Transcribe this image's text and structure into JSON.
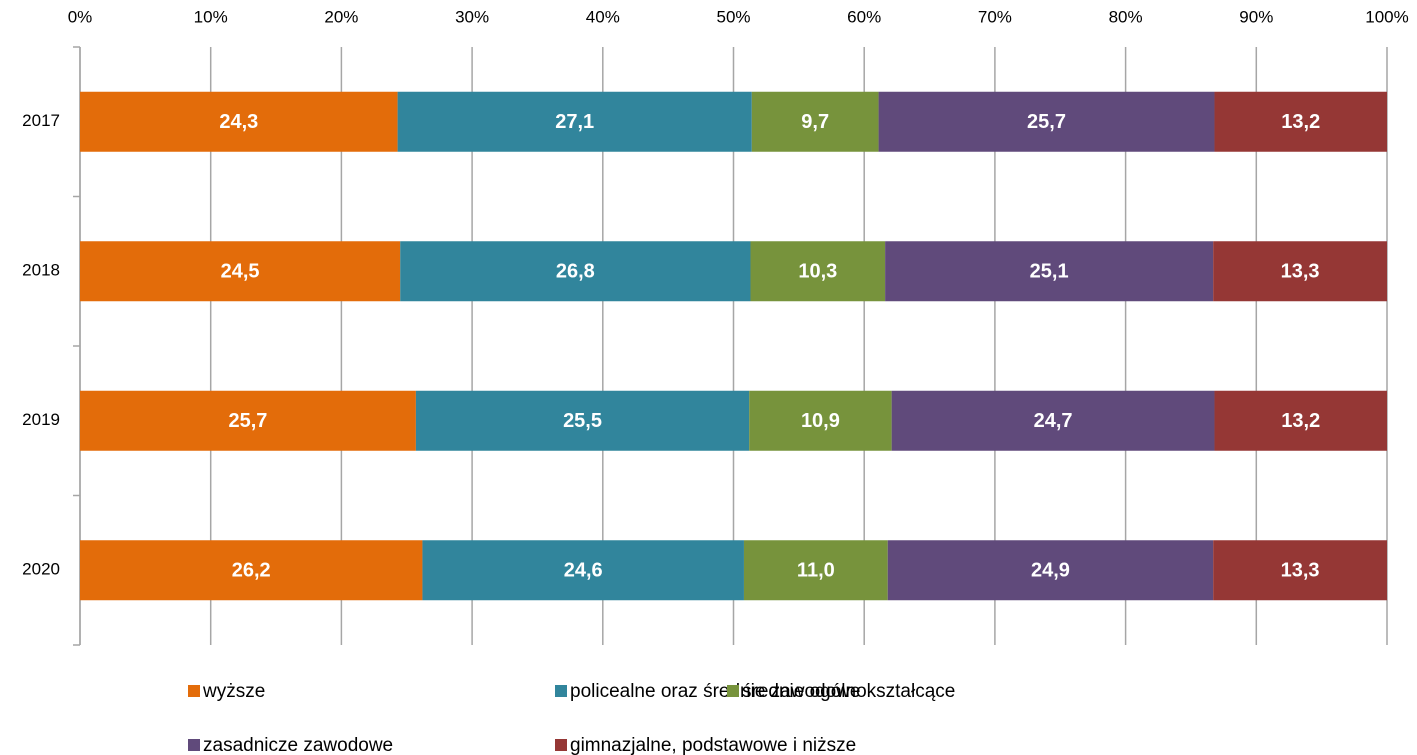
{
  "chart_data": {
    "type": "stacked-bar-horizontal",
    "categories": [
      "2017",
      "2018",
      "2019",
      "2020"
    ],
    "series": [
      {
        "name": "wyższe",
        "color": "#e36c0a",
        "values": [
          24.3,
          24.5,
          25.7,
          26.2
        ],
        "value_labels": [
          "24,3",
          "24,5",
          "25,7",
          "26,2"
        ]
      },
      {
        "name": "policealne oraz średnie zawodowe",
        "color": "#31859c",
        "values": [
          27.1,
          26.8,
          25.5,
          24.6
        ],
        "value_labels": [
          "27,1",
          "26,8",
          "25,5",
          "24,6"
        ]
      },
      {
        "name": "średnie ogólnokształcące",
        "color": "#77933c",
        "values": [
          9.7,
          10.3,
          10.9,
          11.0
        ],
        "value_labels": [
          "9,7",
          "10,3",
          "10,9",
          "11,0"
        ]
      },
      {
        "name": "zasadnicze zawodowe",
        "color": "#604a7b",
        "values": [
          25.7,
          25.1,
          24.7,
          24.9
        ],
        "value_labels": [
          "25,7",
          "25,1",
          "24,7",
          "24,9"
        ]
      },
      {
        "name": "gimnazjalne, podstawowe i niższe",
        "color": "#953735",
        "values": [
          13.2,
          13.3,
          13.2,
          13.3
        ],
        "value_labels": [
          "13,2",
          "13,3",
          "13,2",
          "13,3"
        ]
      }
    ],
    "xlim": [
      0,
      100
    ],
    "xticks": [
      {
        "value": 0,
        "label": "0%"
      },
      {
        "value": 10,
        "label": "10%"
      },
      {
        "value": 20,
        "label": "20%"
      },
      {
        "value": 30,
        "label": "30%"
      },
      {
        "value": 40,
        "label": "40%"
      },
      {
        "value": 50,
        "label": "50%"
      },
      {
        "value": 60,
        "label": "60%"
      },
      {
        "value": 70,
        "label": "70%"
      },
      {
        "value": 80,
        "label": "80%"
      },
      {
        "value": 90,
        "label": "90%"
      },
      {
        "value": 100,
        "label": "100%"
      }
    ],
    "grid": true,
    "legend": "bottom"
  }
}
